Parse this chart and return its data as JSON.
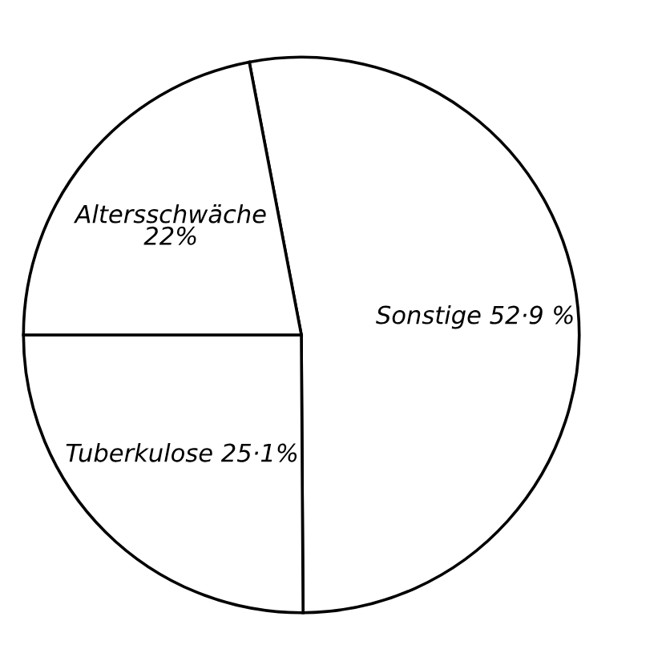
{
  "chart_data": {
    "type": "pie",
    "categories": [
      "Sonstige 52·9 %",
      "Tuberkulose 25·1%",
      "Altersschwäche 22%"
    ],
    "values": [
      52.9,
      25.1,
      22
    ],
    "colors": [
      "#ffffff",
      "#ffffff",
      "#ffffff"
    ]
  }
}
